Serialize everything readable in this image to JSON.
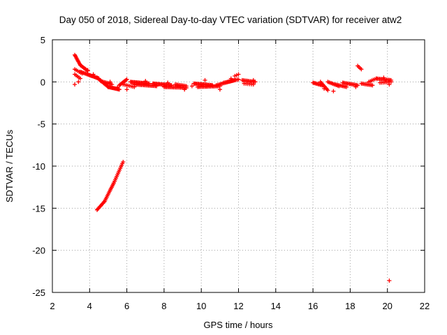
{
  "chart_data": {
    "type": "scatter",
    "title": "Day 050 of 2018, Sidereal Day-to-day VTEC variation (SDTVAR) for receiver atw2",
    "xlabel": "GPS time / hours",
    "ylabel": "SDTVAR / TECUs",
    "xlim": [
      2,
      22
    ],
    "ylim": [
      -25,
      5
    ],
    "xticks": [
      2,
      4,
      6,
      8,
      10,
      12,
      14,
      16,
      18,
      20,
      22
    ],
    "yticks": [
      5,
      0,
      -5,
      -10,
      -15,
      -20,
      -25
    ],
    "grid": true,
    "marker": "+",
    "color": "#ff0000",
    "series": [
      {
        "name": "atw2",
        "segments": [
          {
            "from": [
              3.2,
              3.2
            ],
            "to": [
              3.5,
              2.0
            ],
            "n": 10
          },
          {
            "from": [
              3.5,
              2.0
            ],
            "to": [
              3.9,
              1.3
            ],
            "n": 10
          },
          {
            "from": [
              3.2,
              1.5
            ],
            "to": [
              3.6,
              1.0
            ],
            "n": 6
          },
          {
            "from": [
              3.2,
              0.9
            ],
            "to": [
              3.5,
              0.4
            ],
            "n": 5
          },
          {
            "from": [
              3.5,
              1.2
            ],
            "to": [
              4.0,
              0.8
            ],
            "n": 10
          },
          {
            "from": [
              4.0,
              0.8
            ],
            "to": [
              4.5,
              0.4
            ],
            "n": 12
          },
          {
            "from": [
              4.4,
              0.5
            ],
            "to": [
              5.0,
              -0.6
            ],
            "n": 14
          },
          {
            "from": [
              5.0,
              -0.6
            ],
            "to": [
              5.6,
              -0.9
            ],
            "n": 14
          },
          {
            "from": [
              4.6,
              0.1
            ],
            "to": [
              5.2,
              -0.3
            ],
            "n": 10
          },
          {
            "from": [
              5.6,
              -0.4
            ],
            "to": [
              6.0,
              0.3
            ],
            "n": 10
          },
          {
            "from": [
              5.8,
              -0.3
            ],
            "to": [
              6.4,
              -0.6
            ],
            "n": 8
          },
          {
            "from": [
              6.2,
              0.0
            ],
            "to": [
              7.2,
              -0.2
            ],
            "n": 20
          },
          {
            "from": [
              6.4,
              -0.3
            ],
            "to": [
              7.6,
              -0.5
            ],
            "n": 20
          },
          {
            "from": [
              7.4,
              -0.2
            ],
            "to": [
              8.4,
              -0.4
            ],
            "n": 20
          },
          {
            "from": [
              8.0,
              -0.6
            ],
            "to": [
              9.2,
              -0.7
            ],
            "n": 20
          },
          {
            "from": [
              8.6,
              -0.3
            ],
            "to": [
              9.2,
              -0.5
            ],
            "n": 10
          },
          {
            "from": [
              9.6,
              -0.2
            ],
            "to": [
              10.6,
              -0.4
            ],
            "n": 20
          },
          {
            "from": [
              9.8,
              -0.6
            ],
            "to": [
              11.0,
              -0.5
            ],
            "n": 20
          },
          {
            "from": [
              10.8,
              -0.4
            ],
            "to": [
              11.8,
              0.2
            ],
            "n": 16
          },
          {
            "from": [
              11.2,
              -0.1
            ],
            "to": [
              12.0,
              0.3
            ],
            "n": 12
          },
          {
            "from": [
              11.8,
              0.7
            ],
            "to": [
              12.0,
              0.9
            ],
            "n": 3
          },
          {
            "from": [
              12.2,
              0.2
            ],
            "to": [
              12.9,
              0.0
            ],
            "n": 12
          },
          {
            "from": [
              12.3,
              -0.2
            ],
            "to": [
              12.8,
              -0.3
            ],
            "n": 6
          },
          {
            "from": [
              16.0,
              -0.1
            ],
            "to": [
              16.5,
              -0.4
            ],
            "n": 10
          },
          {
            "from": [
              16.4,
              0.0
            ],
            "to": [
              16.8,
              -1.0
            ],
            "n": 8
          },
          {
            "from": [
              16.8,
              0.0
            ],
            "to": [
              17.4,
              -0.5
            ],
            "n": 10
          },
          {
            "from": [
              17.2,
              -0.3
            ],
            "to": [
              17.8,
              -0.6
            ],
            "n": 10
          },
          {
            "from": [
              17.6,
              -0.1
            ],
            "to": [
              18.4,
              -0.4
            ],
            "n": 14
          },
          {
            "from": [
              18.4,
              1.9
            ],
            "to": [
              18.6,
              1.5
            ],
            "n": 4
          },
          {
            "from": [
              18.6,
              -0.2
            ],
            "to": [
              19.2,
              -0.4
            ],
            "n": 10
          },
          {
            "from": [
              19.0,
              0.0
            ],
            "to": [
              19.4,
              0.4
            ],
            "n": 6
          },
          {
            "from": [
              19.4,
              0.4
            ],
            "to": [
              20.2,
              0.2
            ],
            "n": 14
          },
          {
            "from": [
              19.6,
              -0.1
            ],
            "to": [
              20.2,
              0.0
            ],
            "n": 8
          },
          {
            "from": [
              4.4,
              -15.2
            ],
            "to": [
              4.8,
              -14.2
            ],
            "n": 10
          },
          {
            "from": [
              4.8,
              -14.2
            ],
            "to": [
              5.3,
              -12.0
            ],
            "n": 14
          },
          {
            "from": [
              5.3,
              -12.0
            ],
            "to": [
              5.8,
              -9.5
            ],
            "n": 14
          },
          {
            "from": [
              20.1,
              -23.6
            ],
            "to": [
              20.1,
              -23.6
            ],
            "n": 1
          }
        ],
        "points": [
          [
            3.2,
            -0.3
          ],
          [
            3.4,
            0.0
          ],
          [
            3.9,
            1.4
          ],
          [
            4.2,
            0.9
          ],
          [
            5.1,
            0.0
          ],
          [
            5.5,
            -0.6
          ],
          [
            6.0,
            -0.9
          ],
          [
            7.0,
            0.1
          ],
          [
            8.2,
            -0.1
          ],
          [
            9.1,
            -0.9
          ],
          [
            9.5,
            -0.5
          ],
          [
            10.2,
            0.2
          ],
          [
            11.0,
            -0.9
          ],
          [
            11.6,
            0.4
          ],
          [
            12.8,
            0.2
          ],
          [
            16.6,
            -0.8
          ],
          [
            17.1,
            -1.1
          ],
          [
            18.3,
            -0.6
          ],
          [
            19.8,
            0.5
          ],
          [
            20.1,
            -0.3
          ]
        ]
      }
    ]
  }
}
